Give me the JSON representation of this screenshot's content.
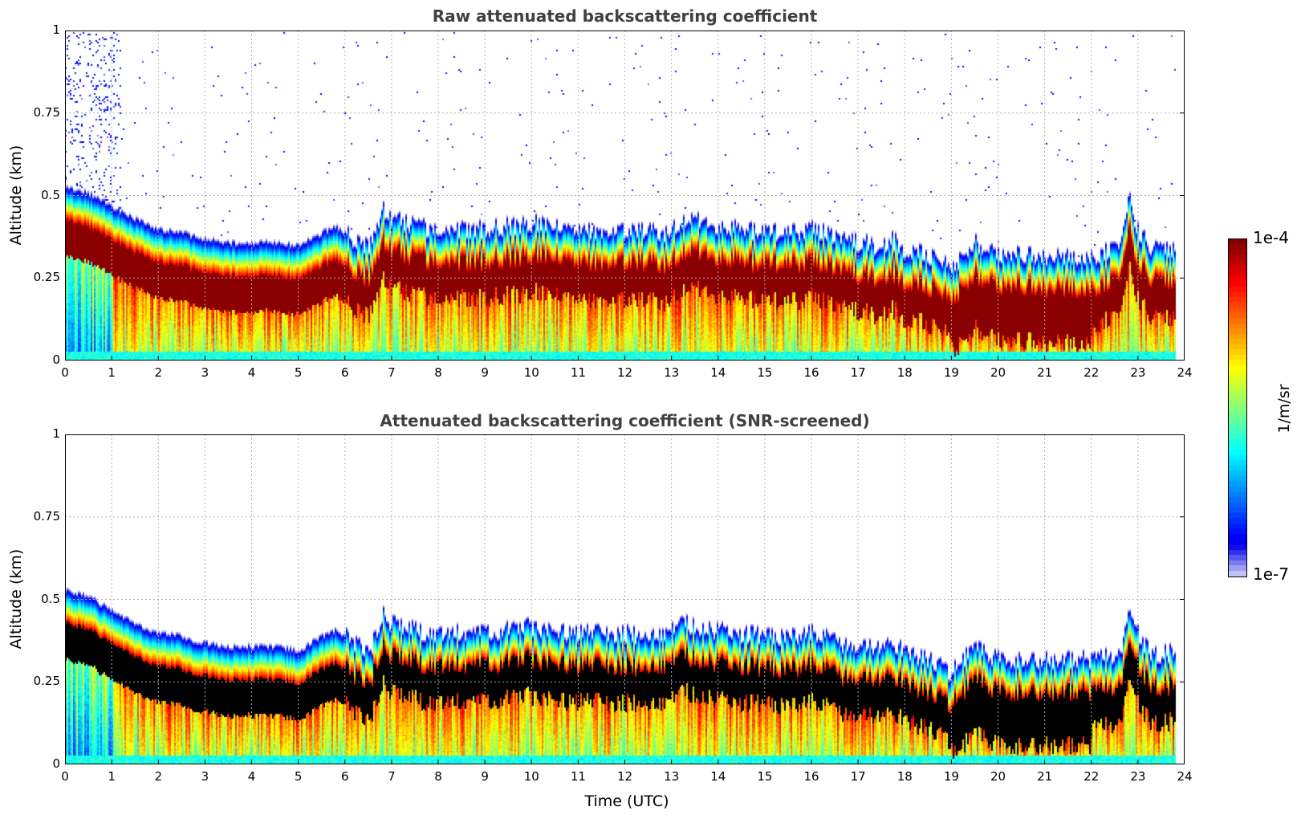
{
  "chart_data": [
    {
      "type": "heatmap",
      "title": "Raw attenuated backscattering coefficient",
      "xlabel": "",
      "ylabel": "Altitude (km)",
      "xlim": [
        0,
        24
      ],
      "ylim": [
        0,
        1
      ],
      "xticks": [
        "0",
        "1",
        "2",
        "3",
        "4",
        "5",
        "6",
        "7",
        "8",
        "9",
        "10",
        "11",
        "12",
        "13",
        "14",
        "15",
        "16",
        "17",
        "18",
        "19",
        "20",
        "21",
        "22",
        "23",
        "24"
      ],
      "yticks": [
        "0",
        "0.25",
        "0.5",
        "0.75",
        "1"
      ],
      "grid": true,
      "data_end_hour": 23.8,
      "layer_top_km": {
        "x": [
          0,
          0.5,
          1,
          1.5,
          2,
          2.5,
          3,
          3.5,
          4,
          4.5,
          5,
          5.5,
          5.8,
          6.2,
          6.5,
          6.8,
          7,
          7.5,
          8,
          9,
          10,
          11,
          12,
          12.8,
          13.3,
          14,
          15,
          15.5,
          16,
          16.3,
          16.6,
          17,
          17.5,
          17.7,
          18,
          18.5,
          19,
          19.5,
          20,
          21,
          22,
          22.6,
          22.8,
          23,
          23.3,
          23.8
        ],
        "y": [
          0.52,
          0.5,
          0.46,
          0.42,
          0.39,
          0.38,
          0.36,
          0.35,
          0.35,
          0.35,
          0.34,
          0.38,
          0.4,
          0.36,
          0.33,
          0.45,
          0.42,
          0.4,
          0.39,
          0.39,
          0.41,
          0.39,
          0.39,
          0.38,
          0.42,
          0.4,
          0.38,
          0.38,
          0.39,
          0.38,
          0.36,
          0.35,
          0.34,
          0.36,
          0.33,
          0.31,
          0.27,
          0.35,
          0.31,
          0.31,
          0.31,
          0.33,
          0.48,
          0.38,
          0.33,
          0.33
        ]
      },
      "colorbar": {
        "min_label": "1e-7",
        "max_label": "1e-4",
        "label": "1/m/sr",
        "scale": "log",
        "colormap": "jet"
      }
    },
    {
      "type": "heatmap",
      "title": "Attenuated backscattering coefficient (SNR-screened)",
      "xlabel": "Time (UTC)",
      "ylabel": "Altitude (km)",
      "xlim": [
        0,
        24
      ],
      "ylim": [
        0,
        1
      ],
      "xticks": [
        "0",
        "1",
        "2",
        "3",
        "4",
        "5",
        "6",
        "7",
        "8",
        "9",
        "10",
        "11",
        "12",
        "13",
        "14",
        "15",
        "16",
        "17",
        "18",
        "19",
        "20",
        "21",
        "22",
        "23",
        "24"
      ],
      "yticks": [
        "0",
        "0.25",
        "0.5",
        "0.75",
        "1"
      ],
      "grid": true,
      "data_end_hour": 23.8,
      "saturated_color": "#000000",
      "colorbar": {
        "min_label": "1e-7",
        "max_label": "1e-4",
        "label": "1/m/sr",
        "scale": "log",
        "colormap": "jet"
      }
    }
  ],
  "colorbar": {
    "max_label": "1e-4",
    "min_label": "1e-7",
    "unit_label": "1/m/sr"
  }
}
